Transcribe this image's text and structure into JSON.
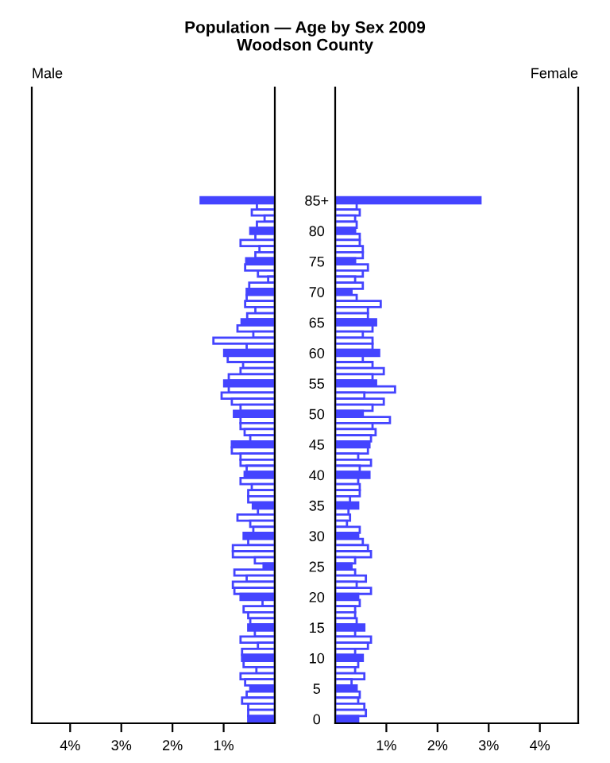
{
  "chart_data": [
    {
      "type": "bar",
      "orientation": "horizontal",
      "title": "Population — Age by Sex 2009",
      "subtitle": "Woodson County",
      "annotations": [
        "Male"
      ],
      "categories": [
        "85+",
        null,
        null,
        null,
        null,
        "80",
        null,
        null,
        null,
        null,
        "75",
        null,
        null,
        null,
        null,
        "70",
        null,
        null,
        null,
        null,
        "65",
        null,
        null,
        null,
        null,
        "60",
        null,
        null,
        null,
        null,
        "55",
        null,
        null,
        null,
        null,
        "50",
        null,
        null,
        null,
        null,
        "45",
        null,
        null,
        null,
        null,
        "40",
        null,
        null,
        null,
        null,
        "35",
        null,
        null,
        null,
        null,
        "30",
        null,
        null,
        null,
        null,
        "25",
        null,
        null,
        null,
        null,
        "20",
        null,
        null,
        null,
        null,
        "15",
        null,
        null,
        null,
        null,
        "10",
        null,
        null,
        null,
        null,
        "5",
        null,
        null,
        null,
        null,
        "0"
      ],
      "series": [
        {
          "color": "#4444ff",
          "colors": [
            "#4444ff",
            "#ffffff",
            "#ffffff",
            "#ffffff",
            "#ffffff",
            "#4444ff",
            "#ffffff",
            "#ffffff",
            "#ffffff",
            "#ffffff",
            "#4444ff",
            "#ffffff",
            "#ffffff",
            "#ffffff",
            "#ffffff",
            "#4444ff",
            "#ffffff",
            "#ffffff",
            "#ffffff",
            "#ffffff",
            "#4444ff",
            "#ffffff",
            "#ffffff",
            "#ffffff",
            "#ffffff",
            "#4444ff",
            "#ffffff",
            "#ffffff",
            "#ffffff",
            "#ffffff",
            "#4444ff",
            "#ffffff",
            "#ffffff",
            "#ffffff",
            "#ffffff",
            "#4444ff",
            "#ffffff",
            "#ffffff",
            "#ffffff",
            "#ffffff",
            "#4444ff",
            "#ffffff",
            "#ffffff",
            "#ffffff",
            "#ffffff",
            "#4444ff",
            "#ffffff",
            "#ffffff",
            "#ffffff",
            "#ffffff",
            "#4444ff",
            "#ffffff",
            "#ffffff",
            "#ffffff",
            "#ffffff",
            "#4444ff",
            "#ffffff",
            "#ffffff",
            "#ffffff",
            "#ffffff",
            "#4444ff",
            "#ffffff",
            "#ffffff",
            "#ffffff",
            "#ffffff",
            "#4444ff",
            "#ffffff",
            "#ffffff",
            "#ffffff",
            "#ffffff",
            "#4444ff",
            "#ffffff",
            "#ffffff",
            "#ffffff",
            "#ffffff",
            "#4444ff",
            "#ffffff",
            "#ffffff",
            "#ffffff",
            "#ffffff",
            "#4444ff",
            "#ffffff",
            "#ffffff",
            "#ffffff",
            "#ffffff",
            "#4444ff"
          ],
          "values": [
            1.45,
            0.35,
            0.45,
            0.2,
            0.35,
            0.48,
            0.38,
            0.67,
            0.3,
            0.38,
            0.56,
            0.58,
            0.33,
            0.13,
            0.5,
            0.55,
            0.55,
            0.58,
            0.38,
            0.54,
            0.65,
            0.73,
            0.42,
            1.2,
            0.55,
            0.99,
            0.92,
            0.62,
            0.67,
            0.9,
            0.99,
            0.9,
            1.04,
            0.84,
            0.67,
            0.8,
            0.67,
            0.67,
            0.59,
            0.48,
            0.84,
            0.84,
            0.67,
            0.67,
            0.55,
            0.59,
            0.67,
            0.45,
            0.52,
            0.52,
            0.43,
            0.33,
            0.73,
            0.48,
            0.42,
            0.61,
            0.52,
            0.82,
            0.82,
            0.39,
            0.22,
            0.79,
            0.55,
            0.82,
            0.79,
            0.67,
            0.24,
            0.61,
            0.52,
            0.48,
            0.52,
            0.39,
            0.67,
            0.33,
            0.64,
            0.64,
            0.61,
            0.36,
            0.67,
            0.58,
            0.48,
            0.55,
            0.64,
            0.52,
            0.52,
            0.52
          ]
        }
      ],
      "xlim": [
        4.75,
        0
      ],
      "xticks": [
        {
          "value": 1,
          "label": "1%"
        },
        {
          "value": 2,
          "label": "2%"
        },
        {
          "value": 3,
          "label": "3%"
        },
        {
          "value": 4,
          "label": "4%"
        }
      ]
    },
    {
      "type": "bar",
      "orientation": "horizontal",
      "annotations": [
        "Female"
      ],
      "categories": [
        null,
        null,
        null,
        null,
        null,
        null,
        null,
        null,
        null,
        null,
        null,
        null,
        null,
        null,
        null,
        null,
        null,
        null,
        null,
        null,
        null,
        null,
        null,
        null,
        null,
        null,
        null,
        null,
        null,
        null,
        null,
        null,
        null,
        null,
        null,
        null,
        null,
        null,
        null,
        null,
        null,
        null,
        null,
        null,
        null,
        null,
        null,
        null,
        null,
        null,
        null,
        null,
        null,
        null,
        null,
        null,
        null,
        null,
        null,
        null,
        null,
        null,
        null,
        null,
        null,
        null,
        null,
        null,
        null,
        null,
        null,
        null,
        null,
        null,
        null,
        null,
        null,
        null,
        null,
        null,
        null,
        null,
        null,
        null,
        null,
        null
      ],
      "series": [
        {
          "color": "#4444ff",
          "colors": [
            "#4444ff",
            "#ffffff",
            "#ffffff",
            "#ffffff",
            "#ffffff",
            "#4444ff",
            "#ffffff",
            "#ffffff",
            "#ffffff",
            "#ffffff",
            "#4444ff",
            "#ffffff",
            "#ffffff",
            "#ffffff",
            "#ffffff",
            "#4444ff",
            "#ffffff",
            "#ffffff",
            "#ffffff",
            "#ffffff",
            "#4444ff",
            "#ffffff",
            "#ffffff",
            "#ffffff",
            "#ffffff",
            "#4444ff",
            "#ffffff",
            "#ffffff",
            "#ffffff",
            "#ffffff",
            "#4444ff",
            "#ffffff",
            "#ffffff",
            "#ffffff",
            "#ffffff",
            "#4444ff",
            "#ffffff",
            "#ffffff",
            "#ffffff",
            "#ffffff",
            "#4444ff",
            "#ffffff",
            "#ffffff",
            "#ffffff",
            "#ffffff",
            "#4444ff",
            "#ffffff",
            "#ffffff",
            "#ffffff",
            "#ffffff",
            "#4444ff",
            "#ffffff",
            "#ffffff",
            "#ffffff",
            "#ffffff",
            "#4444ff",
            "#ffffff",
            "#ffffff",
            "#ffffff",
            "#ffffff",
            "#4444ff",
            "#ffffff",
            "#ffffff",
            "#ffffff",
            "#ffffff",
            "#4444ff",
            "#ffffff",
            "#ffffff",
            "#ffffff",
            "#ffffff",
            "#4444ff",
            "#ffffff",
            "#ffffff",
            "#ffffff",
            "#ffffff",
            "#4444ff",
            "#ffffff",
            "#ffffff",
            "#ffffff",
            "#ffffff",
            "#4444ff",
            "#ffffff",
            "#ffffff",
            "#ffffff",
            "#ffffff",
            "#4444ff"
          ],
          "values": [
            2.84,
            0.42,
            0.48,
            0.39,
            0.42,
            0.39,
            0.48,
            0.48,
            0.54,
            0.54,
            0.39,
            0.64,
            0.54,
            0.39,
            0.54,
            0.32,
            0.42,
            0.89,
            0.64,
            0.64,
            0.8,
            0.73,
            0.54,
            0.73,
            0.73,
            0.86,
            0.54,
            0.73,
            0.95,
            0.73,
            0.8,
            1.17,
            0.57,
            0.95,
            0.73,
            0.54,
            1.07,
            0.73,
            0.79,
            0.7,
            0.67,
            0.64,
            0.45,
            0.7,
            0.48,
            0.67,
            0.45,
            0.48,
            0.48,
            0.29,
            0.45,
            0.26,
            0.29,
            0.23,
            0.48,
            0.45,
            0.54,
            0.64,
            0.7,
            0.39,
            0.32,
            0.39,
            0.6,
            0.42,
            0.7,
            0.45,
            0.48,
            0.39,
            0.39,
            0.42,
            0.57,
            0.39,
            0.7,
            0.64,
            0.39,
            0.54,
            0.45,
            0.39,
            0.57,
            0.32,
            0.42,
            0.48,
            0.45,
            0.57,
            0.6,
            0.45
          ]
        }
      ],
      "xlim": [
        0,
        4.75
      ],
      "xticks": [
        {
          "value": 1,
          "label": "1%"
        },
        {
          "value": 2,
          "label": "2%"
        },
        {
          "value": 3,
          "label": "3%"
        },
        {
          "value": 4,
          "label": "4%"
        }
      ],
      "tick_labels": "x"
    }
  ]
}
